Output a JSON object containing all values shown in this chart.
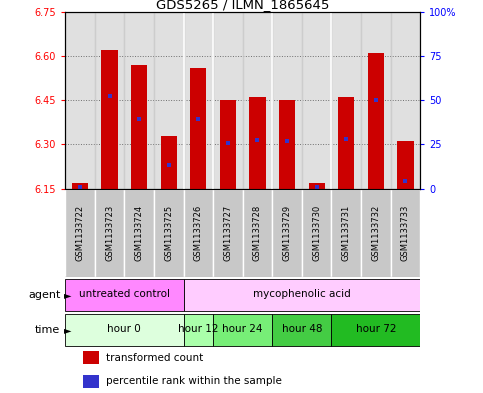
{
  "title": "GDS5265 / ILMN_1865645",
  "samples": [
    "GSM1133722",
    "GSM1133723",
    "GSM1133724",
    "GSM1133725",
    "GSM1133726",
    "GSM1133727",
    "GSM1133728",
    "GSM1133729",
    "GSM1133730",
    "GSM1133731",
    "GSM1133732",
    "GSM1133733"
  ],
  "bar_bottom": 6.15,
  "bar_top": [
    6.17,
    6.62,
    6.57,
    6.33,
    6.56,
    6.45,
    6.46,
    6.45,
    6.17,
    6.46,
    6.61,
    6.31
  ],
  "percentile_values": [
    6.155,
    6.465,
    6.385,
    6.23,
    6.385,
    6.305,
    6.315,
    6.31,
    6.155,
    6.32,
    6.45,
    6.175
  ],
  "ylim": [
    6.15,
    6.75
  ],
  "yticks_left": [
    6.15,
    6.3,
    6.45,
    6.6,
    6.75
  ],
  "yticks_right": [
    0,
    25,
    50,
    75,
    100
  ],
  "bar_color": "#cc0000",
  "percentile_color": "#3333cc",
  "time_groups": [
    {
      "label": "hour 0",
      "start": 0,
      "end": 4,
      "color": "#ddffdd"
    },
    {
      "label": "hour 12",
      "start": 4,
      "end": 5,
      "color": "#aaffaa"
    },
    {
      "label": "hour 24",
      "start": 5,
      "end": 7,
      "color": "#77ee77"
    },
    {
      "label": "hour 48",
      "start": 7,
      "end": 9,
      "color": "#44cc44"
    },
    {
      "label": "hour 72",
      "start": 9,
      "end": 12,
      "color": "#22bb22"
    }
  ],
  "agent_groups": [
    {
      "label": "untreated control",
      "start": 0,
      "end": 4,
      "color": "#ffaaff"
    },
    {
      "label": "mycophenolic acid",
      "start": 4,
      "end": 12,
      "color": "#ffccff"
    }
  ],
  "legend_items": [
    {
      "label": "transformed count",
      "color": "#cc0000"
    },
    {
      "label": "percentile rank within the sample",
      "color": "#3333cc"
    }
  ]
}
